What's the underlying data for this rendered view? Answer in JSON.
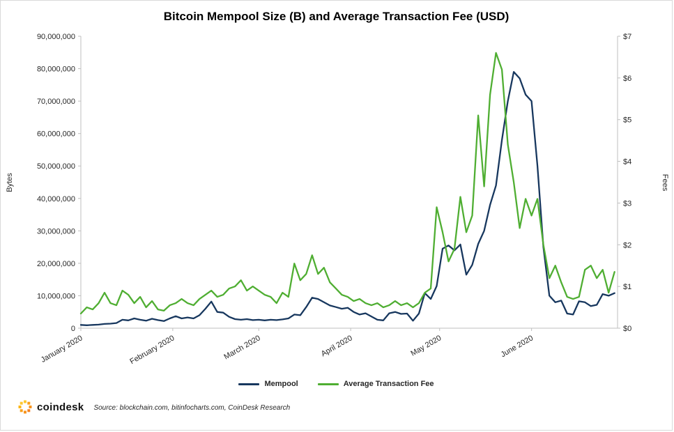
{
  "chart_data": {
    "type": "line",
    "title": "Bitcoin Mempool Size (B) and Average Transaction Fee (USD)",
    "ylabel_left": "Bytes",
    "ylabel_right": "Fees",
    "grid": false,
    "legend_position": "bottom",
    "xlim_days": [
      0,
      181
    ],
    "ylim_left_million_bytes": [
      0,
      90
    ],
    "ylim_right_usd": [
      0,
      7
    ],
    "y_left_ticks": [
      "0",
      "10,000,000",
      "20,000,000",
      "30,000,000",
      "40,000,000",
      "50,000,000",
      "60,000,000",
      "70,000,000",
      "80,000,000",
      "90,000,000"
    ],
    "y_right_ticks": [
      "$0",
      "$1",
      "$2",
      "$3",
      "$4",
      "$5",
      "$6",
      "$7"
    ],
    "x_ticks": [
      {
        "day": 0,
        "label": "January 2020"
      },
      {
        "day": 31,
        "label": "February 2020"
      },
      {
        "day": 60,
        "label": "March 2020"
      },
      {
        "day": 91,
        "label": "April 2020"
      },
      {
        "day": 121,
        "label": "May 2020"
      },
      {
        "day": 152,
        "label": "June 2020"
      }
    ],
    "sample_interval_days": 2,
    "x_days": [
      0,
      2,
      4,
      6,
      8,
      10,
      12,
      14,
      16,
      18,
      20,
      22,
      24,
      26,
      28,
      30,
      32,
      34,
      36,
      38,
      40,
      42,
      44,
      46,
      48,
      50,
      52,
      54,
      56,
      58,
      60,
      62,
      64,
      66,
      68,
      70,
      72,
      74,
      76,
      78,
      80,
      82,
      84,
      86,
      88,
      90,
      92,
      94,
      96,
      98,
      100,
      102,
      104,
      106,
      108,
      110,
      112,
      114,
      116,
      118,
      120,
      122,
      124,
      126,
      128,
      130,
      132,
      134,
      136,
      138,
      140,
      142,
      144,
      146,
      148,
      150,
      152,
      154,
      156,
      158,
      160,
      162,
      164,
      166,
      168,
      170,
      172,
      174,
      176,
      178,
      180
    ],
    "series": [
      {
        "name": "Mempool",
        "axis": "left",
        "unit": "million bytes",
        "color": "#17375e",
        "values": [
          1.0,
          0.9,
          1.0,
          1.1,
          1.3,
          1.4,
          1.6,
          2.6,
          2.4,
          3.0,
          2.6,
          2.3,
          2.9,
          2.5,
          2.2,
          3.0,
          3.7,
          3.0,
          3.3,
          3.0,
          4.0,
          6.0,
          8.2,
          5.0,
          4.8,
          3.5,
          2.8,
          2.6,
          2.8,
          2.5,
          2.6,
          2.4,
          2.6,
          2.5,
          2.7,
          3.0,
          4.2,
          4.0,
          6.5,
          9.4,
          9.0,
          8.0,
          7.0,
          6.5,
          6.0,
          6.3,
          5.0,
          4.2,
          4.6,
          3.6,
          2.6,
          2.4,
          4.6,
          5.0,
          4.4,
          4.5,
          2.3,
          4.5,
          10.8,
          9.0,
          13.0,
          24.5,
          25.5,
          24.0,
          25.8,
          16.5,
          19.5,
          26.0,
          30.0,
          38.0,
          44.0,
          58.0,
          70.0,
          79.0,
          77.0,
          72.0,
          70.0,
          50.0,
          25.0,
          10.0,
          8.0,
          8.5,
          4.5,
          4.2,
          8.3,
          8.0,
          6.8,
          7.2,
          10.5,
          10.0,
          10.8
        ]
      },
      {
        "name": "Average Transaction Fee",
        "axis": "right",
        "unit": "USD",
        "color": "#4fae32",
        "values": [
          0.35,
          0.5,
          0.45,
          0.6,
          0.85,
          0.6,
          0.55,
          0.9,
          0.8,
          0.6,
          0.75,
          0.5,
          0.65,
          0.45,
          0.42,
          0.55,
          0.6,
          0.7,
          0.6,
          0.55,
          0.7,
          0.8,
          0.9,
          0.75,
          0.8,
          0.95,
          1.0,
          1.15,
          0.9,
          1.0,
          0.9,
          0.8,
          0.75,
          0.6,
          0.85,
          0.75,
          1.55,
          1.15,
          1.3,
          1.75,
          1.3,
          1.45,
          1.1,
          0.95,
          0.8,
          0.75,
          0.65,
          0.7,
          0.6,
          0.55,
          0.6,
          0.5,
          0.55,
          0.65,
          0.55,
          0.6,
          0.5,
          0.6,
          0.85,
          0.95,
          2.9,
          2.3,
          1.6,
          1.9,
          3.15,
          2.3,
          2.7,
          5.1,
          3.4,
          5.6,
          6.6,
          6.2,
          4.4,
          3.5,
          2.4,
          3.1,
          2.7,
          3.1,
          2.0,
          1.2,
          1.5,
          1.1,
          0.75,
          0.7,
          0.75,
          1.4,
          1.5,
          1.2,
          1.4,
          0.85,
          1.35
        ]
      }
    ],
    "colors": {
      "axis": "#bfbfbf",
      "text": "#262626"
    }
  },
  "footer": {
    "brand": "coindesk",
    "source": "Source: blockchain.com, bitinfocharts.com, CoinDesk Research",
    "brand_colors": [
      "#fdc830",
      "#fcb614",
      "#f9a01b",
      "#f7941d",
      "#f58220"
    ]
  }
}
